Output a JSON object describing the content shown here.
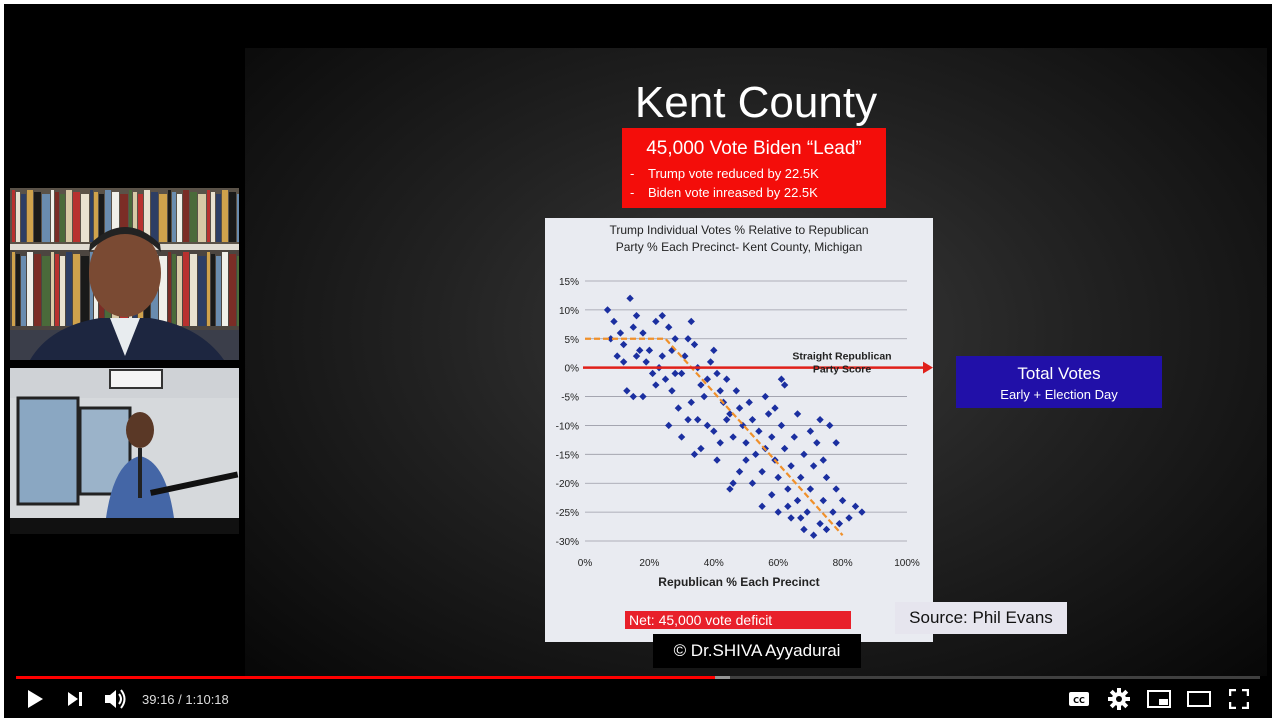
{
  "slide": {
    "title": "Kent County",
    "lead_box": {
      "headline": "45,000 Vote Biden “Lead”",
      "items": [
        "Trump vote reduced by 22.5K",
        "Biden vote inreased by 22.5K"
      ],
      "bullet": "-"
    },
    "total_votes": {
      "title": "Total Votes",
      "subtitle": "Early + Election Day"
    },
    "source": "Source: Phil Evans",
    "copyright": "© Dr.SHIVA Ayyadurai"
  },
  "chart_data": {
    "type": "scatter",
    "title": "Trump Individual Votes % Relative to Republican Party % Each Precinct- Kent County, Michigan",
    "title_lines": [
      "Trump Individual Votes % Relative to Republican",
      "Party % Each Precinct- Kent County, Michigan"
    ],
    "xlabel": "Republican % Each Precinct",
    "x_ticks": [
      "0%",
      "20%",
      "40%",
      "60%",
      "80%",
      "100%"
    ],
    "y_ticks": [
      "15%",
      "10%",
      "5%",
      "0%",
      "-5%",
      "-10%",
      "-15%",
      "-20%",
      "-25%",
      "-30%"
    ],
    "xlim": [
      0,
      100
    ],
    "ylim": [
      -30,
      15
    ],
    "grid": true,
    "points_color": "#1b2fa0",
    "annotation": [
      "Straight Republican",
      "Party Score"
    ],
    "reference_line": {
      "y": 0,
      "color": "#e0201a"
    },
    "trend_line": {
      "color": "#f0902a",
      "points": [
        [
          0,
          5
        ],
        [
          25,
          5
        ],
        [
          80,
          -29
        ]
      ]
    },
    "net_label": "Net:  45,000 vote deficit",
    "points": [
      [
        7,
        10
      ],
      [
        9,
        8
      ],
      [
        11,
        6
      ],
      [
        12,
        4
      ],
      [
        14,
        12
      ],
      [
        15,
        7
      ],
      [
        16,
        2
      ],
      [
        13,
        -4
      ],
      [
        15,
        -5
      ],
      [
        18,
        -5
      ],
      [
        10,
        2
      ],
      [
        12,
        1
      ],
      [
        17,
        3
      ],
      [
        19,
        1
      ],
      [
        8,
        5
      ],
      [
        22,
        8
      ],
      [
        24,
        9
      ],
      [
        26,
        7
      ],
      [
        28,
        5
      ],
      [
        27,
        3
      ],
      [
        24,
        2
      ],
      [
        23,
        0
      ],
      [
        25,
        -2
      ],
      [
        27,
        -4
      ],
      [
        22,
        -3
      ],
      [
        26,
        -10
      ],
      [
        29,
        -7
      ],
      [
        30,
        -1
      ],
      [
        31,
        2
      ],
      [
        32,
        5
      ],
      [
        33,
        8
      ],
      [
        34,
        4
      ],
      [
        35,
        0
      ],
      [
        36,
        -3
      ],
      [
        33,
        -6
      ],
      [
        35,
        -9
      ],
      [
        37,
        -5
      ],
      [
        38,
        -2
      ],
      [
        39,
        1
      ],
      [
        40,
        3
      ],
      [
        41,
        -1
      ],
      [
        42,
        -4
      ],
      [
        43,
        -6
      ],
      [
        44,
        -9
      ],
      [
        40,
        -11
      ],
      [
        42,
        -13
      ],
      [
        45,
        -8
      ],
      [
        46,
        -12
      ],
      [
        47,
        -4
      ],
      [
        48,
        -7
      ],
      [
        49,
        -10
      ],
      [
        50,
        -13
      ],
      [
        51,
        -6
      ],
      [
        52,
        -9
      ],
      [
        50,
        -16
      ],
      [
        53,
        -15
      ],
      [
        54,
        -11
      ],
      [
        55,
        -18
      ],
      [
        56,
        -14
      ],
      [
        57,
        -8
      ],
      [
        58,
        -12
      ],
      [
        59,
        -16
      ],
      [
        60,
        -19
      ],
      [
        61,
        -10
      ],
      [
        62,
        -3
      ],
      [
        62,
        -14
      ],
      [
        63,
        -21
      ],
      [
        64,
        -17
      ],
      [
        65,
        -12
      ],
      [
        66,
        -23
      ],
      [
        67,
        -19
      ],
      [
        68,
        -15
      ],
      [
        69,
        -25
      ],
      [
        70,
        -21
      ],
      [
        71,
        -17
      ],
      [
        72,
        -13
      ],
      [
        73,
        -27
      ],
      [
        74,
        -23
      ],
      [
        75,
        -19
      ],
      [
        76,
        -10
      ],
      [
        77,
        -25
      ],
      [
        78,
        -21
      ],
      [
        79,
        -27
      ],
      [
        80,
        -23
      ],
      [
        82,
        -26
      ],
      [
        84,
        -24
      ],
      [
        86,
        -25
      ],
      [
        73,
        -9
      ],
      [
        70,
        -11
      ],
      [
        66,
        -8
      ],
      [
        64,
        -26
      ],
      [
        68,
        -28
      ],
      [
        71,
        -29
      ],
      [
        75,
        -28
      ],
      [
        58,
        -22
      ],
      [
        55,
        -24
      ],
      [
        52,
        -20
      ],
      [
        48,
        -18
      ],
      [
        45,
        -21
      ],
      [
        60,
        -25
      ],
      [
        63,
        -24
      ],
      [
        67,
        -26
      ],
      [
        74,
        -16
      ],
      [
        78,
        -13
      ],
      [
        44,
        -2
      ],
      [
        38,
        -10
      ],
      [
        36,
        -14
      ],
      [
        41,
        -16
      ],
      [
        46,
        -20
      ],
      [
        32,
        -9
      ],
      [
        30,
        -12
      ],
      [
        56,
        -5
      ],
      [
        59,
        -7
      ],
      [
        61,
        -2
      ],
      [
        34,
        -15
      ],
      [
        28,
        -1
      ],
      [
        20,
        3
      ],
      [
        21,
        -1
      ],
      [
        18,
        6
      ],
      [
        16,
        9
      ]
    ]
  },
  "player": {
    "time_current": "39:16",
    "time_sep": " / ",
    "time_total": "1:10:18",
    "progress_played": 0.5616,
    "progress_buffered": 0.574,
    "accent": "#ff0000",
    "icons": [
      "play-icon",
      "next-icon",
      "volume-icon",
      "captions-icon",
      "settings-icon",
      "miniplayer-icon",
      "theater-icon",
      "fullscreen-icon"
    ]
  }
}
